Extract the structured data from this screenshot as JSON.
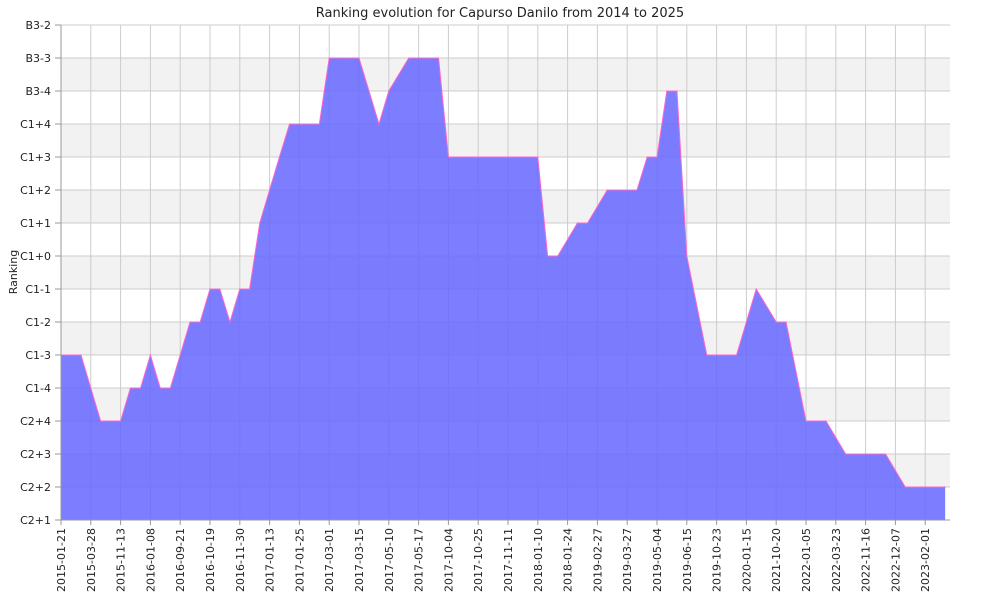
{
  "chart_data": {
    "type": "area",
    "title": "Ranking evolution for Capurso Danilo from 2014 to 2025",
    "xlabel": "",
    "ylabel": "Ranking",
    "y_categories": [
      "C2+1",
      "C2+2",
      "C2+3",
      "C2+4",
      "C1-4",
      "C1-3",
      "C1-2",
      "C1-1",
      "C1+0",
      "C1+1",
      "C1+2",
      "C1+3",
      "C1+4",
      "B3-4",
      "B3-3",
      "B3-2"
    ],
    "x_tick_labels": [
      "2015-01-21",
      "2015-03-28",
      "2015-11-13",
      "2016-01-08",
      "2016-09-21",
      "2016-10-19",
      "2016-11-30",
      "2017-01-13",
      "2017-01-25",
      "2017-03-01",
      "2017-03-15",
      "2017-05-10",
      "2017-05-17",
      "2017-10-04",
      "2017-10-25",
      "2017-11-11",
      "2018-01-10",
      "2018-01-24",
      "2019-02-27",
      "2019-03-27",
      "2019-05-04",
      "2019-06-15",
      "2019-10-23",
      "2020-01-15",
      "2021-10-20",
      "2022-01-05",
      "2022-03-23",
      "2022-11-16",
      "2022-12-07",
      "2023-02-01"
    ],
    "series": [
      {
        "x": [
          0.0,
          0.67,
          1.33,
          2.0,
          2.33,
          2.67,
          3.0,
          3.33,
          3.67,
          4.33,
          4.67,
          5.0,
          5.33,
          5.67,
          6.0,
          6.33,
          6.67,
          7.33,
          7.67,
          8.0,
          8.67,
          9.0,
          9.33,
          10.0,
          10.67,
          11.0,
          11.67,
          12.0,
          12.67,
          13.0,
          13.33,
          14.0,
          15.0,
          16.0,
          16.33,
          16.67,
          17.33,
          17.67,
          18.33,
          19.33,
          19.67,
          20.0,
          20.33,
          20.67,
          21.0,
          21.67,
          22.0,
          22.67,
          23.33,
          24.0,
          24.33,
          25.0,
          25.67,
          26.33,
          27.0,
          27.67,
          28.33,
          29.33,
          29.67
        ],
        "values": [
          "C1-3",
          "C1-3",
          "C2+4",
          "C2+4",
          "C1-4",
          "C1-4",
          "C1-3",
          "C1-4",
          "C1-4",
          "C1-2",
          "C1-2",
          "C1-1",
          "C1-1",
          "C1-2",
          "C1-1",
          "C1-1",
          "C1+1",
          "C1+3",
          "C1+4",
          "C1+4",
          "C1+4",
          "B3-3",
          "B3-3",
          "B3-3",
          "C1+4",
          "B3-4",
          "B3-3",
          "B3-3",
          "B3-3",
          "C1+3",
          "C1+3",
          "C1+3",
          "C1+3",
          "C1+3",
          "C1+0",
          "C1+0",
          "C1+1",
          "C1+1",
          "C1+2",
          "C1+2",
          "C1+3",
          "C1+3",
          "B3-4",
          "B3-4",
          "C1+0",
          "C1-3",
          "C1-3",
          "C1-3",
          "C1-1",
          "C1-2",
          "C1-2",
          "C2+4",
          "C2+4",
          "C2+3",
          "C2+3",
          "C2+3",
          "C2+2",
          "C2+2",
          "C2+2"
        ]
      }
    ],
    "ylim": [
      "C2+1",
      "B3-2"
    ],
    "grid": true,
    "legend": "none",
    "colors": {
      "fill": "#6666ff",
      "line": "#ff66cc",
      "band": "#f2f2f2",
      "grid": "#cccccc",
      "axis": "#999999"
    }
  }
}
